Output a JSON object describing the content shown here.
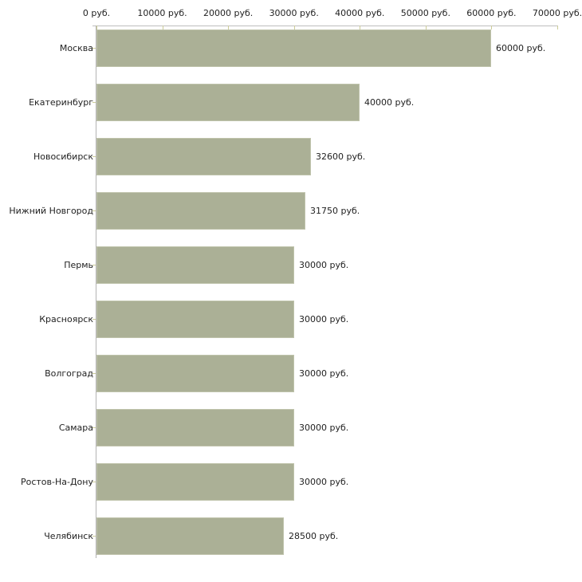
{
  "chart_data": {
    "type": "bar",
    "orientation": "horizontal",
    "title": "",
    "xlabel": "",
    "ylabel": "",
    "categories": [
      "Москва",
      "Екатеринбург",
      "Новосибирск",
      "Нижний Новгород",
      "Пермь",
      "Красноярск",
      "Волгоград",
      "Самара",
      "Ростов-На-Дону",
      "Челябинск"
    ],
    "values": [
      60000,
      40000,
      32600,
      31750,
      30000,
      30000,
      30000,
      30000,
      30000,
      28500
    ],
    "value_labels": [
      "60000 руб.",
      "40000 руб.",
      "32600 руб.",
      "31750 руб.",
      "30000 руб.",
      "30000 руб.",
      "30000 руб.",
      "30000 руб.",
      "30000 руб.",
      "28500 руб."
    ],
    "x_axis": {
      "min": 0,
      "max": 70000,
      "tick_step": 10000,
      "position": "top",
      "tick_labels": [
        "0 руб.",
        "10000 руб.",
        "20000 руб.",
        "30000 руб.",
        "40000 руб.",
        "50000 руб.",
        "60000 руб.",
        "70000 руб."
      ]
    },
    "grid": false,
    "legend": null,
    "colors": {
      "bar_fill": "#abb096",
      "bar_border": "#bfc3ab",
      "axis_line": "#b3b3b3",
      "tick_mark": "#cccc99",
      "text": "#222222",
      "background": "#ffffff"
    }
  }
}
